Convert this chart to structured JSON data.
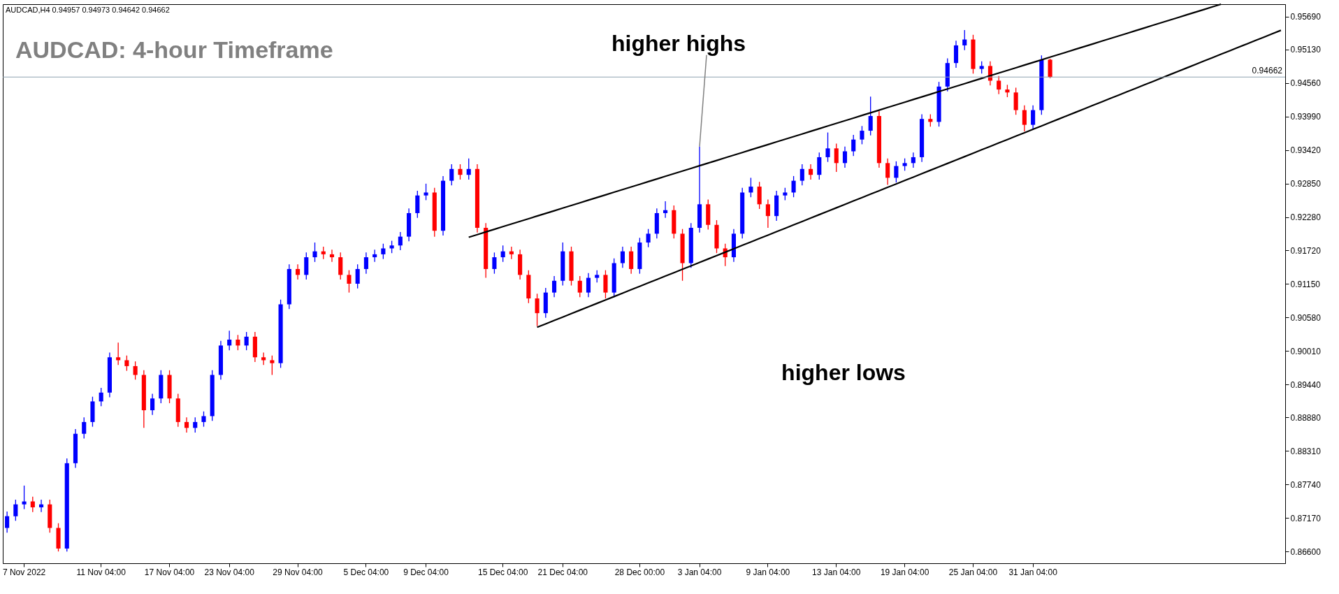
{
  "chart_data": {
    "type": "candlestick",
    "title": "AUDCAD: 4-hour Timeframe",
    "annotations": [
      "AUDCAD,H4 0.94957 0.94973 0.94642 0.94662",
      {
        "text": "higher highs",
        "x": "3 Jan 04:00",
        "y": 0.9348
      },
      "higher lows"
    ],
    "categories": [
      null,
      null,
      "7 Nov 2022",
      null,
      null,
      null,
      null,
      null,
      null,
      null,
      null,
      "11 Nov 04:00",
      null,
      null,
      null,
      null,
      null,
      null,
      null,
      "17 Nov 04:00",
      null,
      null,
      null,
      null,
      null,
      null,
      "23 Nov 04:00",
      null,
      null,
      null,
      null,
      null,
      null,
      null,
      "29 Nov 04:00",
      null,
      null,
      null,
      null,
      null,
      null,
      null,
      "5 Dec 04:00",
      null,
      null,
      null,
      null,
      null,
      null,
      "9 Dec 04:00",
      null,
      null,
      null,
      null,
      null,
      null,
      null,
      null,
      "15 Dec 04:00",
      null,
      null,
      null,
      null,
      null,
      null,
      "21 Dec 04:00",
      null,
      null,
      null,
      null,
      null,
      null,
      null,
      null,
      "28 Dec 00:00",
      null,
      null,
      null,
      null,
      null,
      null,
      "3 Jan 04:00",
      null,
      null,
      null,
      null,
      null,
      null,
      null,
      "9 Jan 04:00",
      null,
      null,
      null,
      null,
      null,
      null,
      null,
      "13 Jan 04:00",
      null,
      null,
      null,
      null,
      null,
      null,
      null,
      "19 Jan 04:00",
      null,
      null,
      null,
      null,
      null,
      null,
      null,
      "25 Jan 04:00",
      null,
      null,
      null,
      null,
      null,
      null,
      "31 Jan 04:00",
      null,
      null,
      null,
      null,
      null,
      null,
      null,
      null,
      null,
      null,
      null,
      null,
      null,
      null,
      null,
      null,
      null,
      null,
      null,
      null,
      null,
      null,
      null,
      null,
      null,
      null,
      null,
      null,
      null
    ],
    "ohlc": [
      [
        0.87,
        0.8728,
        0.8692,
        0.872
      ],
      [
        0.872,
        0.8748,
        0.8712,
        0.874
      ],
      [
        0.874,
        0.8772,
        0.8732,
        0.8745
      ],
      [
        0.8745,
        0.8753,
        0.8727,
        0.8735
      ],
      [
        0.8735,
        0.8748,
        0.8727,
        0.874
      ],
      [
        0.874,
        0.8748,
        0.8692,
        0.87
      ],
      [
        0.87,
        0.8708,
        0.866,
        0.8665
      ],
      [
        0.8665,
        0.8818,
        0.866,
        0.881
      ],
      [
        0.881,
        0.8868,
        0.8802,
        0.886
      ],
      [
        0.886,
        0.8888,
        0.8852,
        0.888
      ],
      [
        0.888,
        0.8923,
        0.8872,
        0.8915
      ],
      [
        0.8915,
        0.8938,
        0.8907,
        0.893
      ],
      [
        0.893,
        0.8998,
        0.8922,
        0.899
      ],
      [
        0.899,
        0.9015,
        0.8977,
        0.8985
      ],
      [
        0.8985,
        0.8993,
        0.8967,
        0.8975
      ],
      [
        0.8975,
        0.8983,
        0.8952,
        0.896
      ],
      [
        0.896,
        0.8968,
        0.887,
        0.89
      ],
      [
        0.89,
        0.8928,
        0.8892,
        0.892
      ],
      [
        0.892,
        0.8968,
        0.8912,
        0.896
      ],
      [
        0.896,
        0.8968,
        0.8912,
        0.892
      ],
      [
        0.892,
        0.8928,
        0.8872,
        0.888
      ],
      [
        0.888,
        0.8888,
        0.8862,
        0.887
      ],
      [
        0.887,
        0.8888,
        0.8862,
        0.888
      ],
      [
        0.888,
        0.8898,
        0.8872,
        0.889
      ],
      [
        0.889,
        0.8968,
        0.8882,
        0.896
      ],
      [
        0.896,
        0.9018,
        0.8952,
        0.901
      ],
      [
        0.901,
        0.9035,
        0.9002,
        0.902
      ],
      [
        0.902,
        0.9028,
        0.9002,
        0.901
      ],
      [
        0.901,
        0.9033,
        0.9002,
        0.9025
      ],
      [
        0.9025,
        0.9033,
        0.8982,
        0.899
      ],
      [
        0.899,
        0.8998,
        0.8977,
        0.8985
      ],
      [
        0.8985,
        0.8993,
        0.896,
        0.898
      ],
      [
        0.898,
        0.9088,
        0.8972,
        0.908
      ],
      [
        0.908,
        0.9148,
        0.9072,
        0.914
      ],
      [
        0.914,
        0.9148,
        0.9122,
        0.913
      ],
      [
        0.913,
        0.9168,
        0.9122,
        0.916
      ],
      [
        0.916,
        0.9185,
        0.9152,
        0.917
      ],
      [
        0.917,
        0.9178,
        0.9157,
        0.9165
      ],
      [
        0.9165,
        0.9173,
        0.9152,
        0.916
      ],
      [
        0.916,
        0.9168,
        0.9122,
        0.913
      ],
      [
        0.913,
        0.9138,
        0.91,
        0.9115
      ],
      [
        0.9115,
        0.9148,
        0.9107,
        0.914
      ],
      [
        0.914,
        0.9168,
        0.9132,
        0.916
      ],
      [
        0.916,
        0.9173,
        0.9152,
        0.9165
      ],
      [
        0.9165,
        0.9183,
        0.9157,
        0.9175
      ],
      [
        0.9175,
        0.9188,
        0.9167,
        0.918
      ],
      [
        0.918,
        0.9203,
        0.9172,
        0.9195
      ],
      [
        0.9195,
        0.9243,
        0.9187,
        0.9235
      ],
      [
        0.9235,
        0.9273,
        0.9227,
        0.9265
      ],
      [
        0.9265,
        0.9285,
        0.9257,
        0.927
      ],
      [
        0.927,
        0.9278,
        0.9195,
        0.9205
      ],
      [
        0.9205,
        0.9298,
        0.9197,
        0.929
      ],
      [
        0.929,
        0.9318,
        0.9282,
        0.931
      ],
      [
        0.931,
        0.9318,
        0.9292,
        0.93
      ],
      [
        0.93,
        0.9328,
        0.9292,
        0.931
      ],
      [
        0.931,
        0.9318,
        0.9202,
        0.921
      ],
      [
        0.921,
        0.9218,
        0.9125,
        0.914
      ],
      [
        0.914,
        0.9168,
        0.9132,
        0.916
      ],
      [
        0.916,
        0.918,
        0.9152,
        0.917
      ],
      [
        0.917,
        0.9178,
        0.9157,
        0.9165
      ],
      [
        0.9165,
        0.9173,
        0.9122,
        0.913
      ],
      [
        0.913,
        0.9138,
        0.9082,
        0.909
      ],
      [
        0.909,
        0.9098,
        0.9043,
        0.9065
      ],
      [
        0.9065,
        0.9108,
        0.9057,
        0.91
      ],
      [
        0.91,
        0.9128,
        0.9092,
        0.912
      ],
      [
        0.912,
        0.9185,
        0.9112,
        0.917
      ],
      [
        0.917,
        0.9178,
        0.9112,
        0.912
      ],
      [
        0.912,
        0.9128,
        0.9092,
        0.91
      ],
      [
        0.91,
        0.9133,
        0.9092,
        0.9125
      ],
      [
        0.9125,
        0.9138,
        0.9117,
        0.913
      ],
      [
        0.913,
        0.9138,
        0.909,
        0.91
      ],
      [
        0.91,
        0.9158,
        0.9092,
        0.915
      ],
      [
        0.915,
        0.9178,
        0.9142,
        0.917
      ],
      [
        0.917,
        0.9178,
        0.9132,
        0.914
      ],
      [
        0.914,
        0.9193,
        0.9132,
        0.9185
      ],
      [
        0.9185,
        0.9208,
        0.9177,
        0.92
      ],
      [
        0.92,
        0.9243,
        0.9192,
        0.9235
      ],
      [
        0.9235,
        0.9255,
        0.9227,
        0.924
      ],
      [
        0.924,
        0.9248,
        0.9192,
        0.92
      ],
      [
        0.92,
        0.9208,
        0.912,
        0.915
      ],
      [
        0.915,
        0.9218,
        0.9142,
        0.921
      ],
      [
        0.921,
        0.9348,
        0.9202,
        0.925
      ],
      [
        0.925,
        0.9258,
        0.9207,
        0.9215
      ],
      [
        0.9215,
        0.9223,
        0.9167,
        0.9175
      ],
      [
        0.9175,
        0.9183,
        0.9145,
        0.916
      ],
      [
        0.916,
        0.9208,
        0.9152,
        0.92
      ],
      [
        0.92,
        0.9278,
        0.9192,
        0.927
      ],
      [
        0.927,
        0.9295,
        0.9262,
        0.928
      ],
      [
        0.928,
        0.9288,
        0.9242,
        0.925
      ],
      [
        0.925,
        0.9258,
        0.921,
        0.923
      ],
      [
        0.923,
        0.9273,
        0.9222,
        0.9265
      ],
      [
        0.9265,
        0.9278,
        0.9257,
        0.927
      ],
      [
        0.927,
        0.9298,
        0.9262,
        0.929
      ],
      [
        0.929,
        0.9318,
        0.9282,
        0.931
      ],
      [
        0.931,
        0.9318,
        0.9292,
        0.93
      ],
      [
        0.93,
        0.9338,
        0.9292,
        0.933
      ],
      [
        0.933,
        0.9372,
        0.9322,
        0.9345
      ],
      [
        0.9345,
        0.9353,
        0.9305,
        0.932
      ],
      [
        0.932,
        0.9348,
        0.9312,
        0.934
      ],
      [
        0.934,
        0.9368,
        0.9332,
        0.936
      ],
      [
        0.936,
        0.9383,
        0.9352,
        0.9375
      ],
      [
        0.9375,
        0.9433,
        0.9367,
        0.94
      ],
      [
        0.94,
        0.9408,
        0.9312,
        0.932
      ],
      [
        0.932,
        0.9328,
        0.9283,
        0.9295
      ],
      [
        0.9295,
        0.9323,
        0.9287,
        0.9315
      ],
      [
        0.9315,
        0.9328,
        0.9307,
        0.932
      ],
      [
        0.932,
        0.9338,
        0.9312,
        0.933
      ],
      [
        0.933,
        0.9403,
        0.9322,
        0.9395
      ],
      [
        0.9395,
        0.9403,
        0.9382,
        0.939
      ],
      [
        0.939,
        0.9458,
        0.9382,
        0.945
      ],
      [
        0.945,
        0.9498,
        0.9442,
        0.949
      ],
      [
        0.949,
        0.9528,
        0.9482,
        0.952
      ],
      [
        0.952,
        0.9546,
        0.9512,
        0.953
      ],
      [
        0.953,
        0.9538,
        0.9472,
        0.948
      ],
      [
        0.948,
        0.9493,
        0.9472,
        0.9485
      ],
      [
        0.9485,
        0.9493,
        0.9452,
        0.946
      ],
      [
        0.946,
        0.9468,
        0.9437,
        0.9445
      ],
      [
        0.9445,
        0.9453,
        0.9432,
        0.944
      ],
      [
        0.944,
        0.9448,
        0.9402,
        0.941
      ],
      [
        0.941,
        0.9418,
        0.9374,
        0.9385
      ],
      [
        0.9385,
        0.9418,
        0.9377,
        0.941
      ],
      [
        0.941,
        0.9503,
        0.9402,
        0.9495
      ],
      [
        0.94957,
        0.94973,
        0.94642,
        0.94662
      ],
      null,
      null,
      null,
      null,
      null,
      null,
      null,
      null,
      null,
      null,
      null,
      null,
      null,
      null,
      null,
      null,
      null,
      null,
      null,
      null,
      null,
      null,
      null,
      null,
      null,
      null,
      null
    ],
    "colors": [
      "#0000ff",
      "#0000ff",
      "#0000ff",
      "#ff0000",
      "#0000ff",
      "#ff0000",
      "#ff0000",
      "#0000ff",
      "#0000ff",
      "#0000ff",
      "#0000ff",
      "#0000ff",
      "#0000ff",
      "#ff0000",
      "#ff0000",
      "#ff0000",
      "#ff0000",
      "#0000ff",
      "#0000ff",
      "#ff0000",
      "#ff0000",
      "#ff0000",
      "#0000ff",
      "#0000ff",
      "#0000ff",
      "#0000ff",
      "#0000ff",
      "#ff0000",
      "#0000ff",
      "#ff0000",
      "#ff0000",
      "#ff0000",
      "#0000ff",
      "#0000ff",
      "#ff0000",
      "#0000ff",
      "#0000ff",
      "#ff0000",
      "#ff0000",
      "#ff0000",
      "#ff0000",
      "#0000ff",
      "#0000ff",
      "#0000ff",
      "#0000ff",
      "#0000ff",
      "#0000ff",
      "#0000ff",
      "#0000ff",
      "#0000ff",
      "#ff0000",
      "#0000ff",
      "#0000ff",
      "#ff0000",
      "#0000ff",
      "#ff0000",
      "#ff0000",
      "#0000ff",
      "#0000ff",
      "#ff0000",
      "#ff0000",
      "#ff0000",
      "#ff0000",
      "#0000ff",
      "#0000ff",
      "#0000ff",
      "#ff0000",
      "#ff0000",
      "#0000ff",
      "#0000ff",
      "#ff0000",
      "#0000ff",
      "#0000ff",
      "#ff0000",
      "#0000ff",
      "#0000ff",
      "#0000ff",
      "#0000ff",
      "#ff0000",
      "#ff0000",
      "#0000ff",
      "#0000ff",
      "#ff0000",
      "#ff0000",
      "#ff0000",
      "#0000ff",
      "#0000ff",
      "#0000ff",
      "#ff0000",
      "#ff0000",
      "#0000ff",
      "#0000ff",
      "#0000ff",
      "#0000ff",
      "#ff0000",
      "#0000ff",
      "#0000ff",
      "#ff0000",
      "#0000ff",
      "#0000ff",
      "#0000ff",
      "#0000ff",
      "#ff0000",
      "#ff0000",
      "#0000ff",
      "#0000ff",
      "#0000ff",
      "#0000ff",
      "#ff0000",
      "#0000ff",
      "#0000ff",
      "#0000ff",
      "#0000ff",
      "#ff0000",
      "#0000ff",
      "#ff0000",
      "#ff0000",
      "#ff0000",
      "#ff0000",
      "#ff0000",
      "#0000ff",
      "#0000ff",
      "#ff0000",
      null,
      null,
      null,
      null,
      null,
      null,
      null,
      null,
      null,
      null,
      null,
      null,
      null,
      null,
      null,
      null,
      null,
      null,
      null,
      null,
      null,
      null,
      null,
      null,
      null,
      null,
      null
    ],
    "series": [
      {
        "type": "line",
        "color": "#000000",
        "values": [
          null,
          null,
          null,
          null,
          null,
          null,
          null,
          null,
          null,
          null,
          null,
          null,
          null,
          null,
          null,
          null,
          null,
          null,
          null,
          null,
          null,
          null,
          null,
          null,
          null,
          null,
          null,
          null,
          null,
          null,
          null,
          null,
          null,
          null,
          null,
          null,
          null,
          null,
          null,
          null,
          null,
          null,
          null,
          null,
          null,
          null,
          null,
          null,
          null,
          null,
          null,
          null,
          null,
          null,
          0.9194,
          0.91985,
          0.9203,
          0.92075,
          0.9212,
          0.92165,
          0.9221,
          0.92255,
          0.923,
          0.92345,
          0.9239,
          0.92435,
          0.9248,
          0.92525,
          0.9257,
          0.92615,
          0.9266,
          0.92705,
          0.9275,
          0.92795,
          0.9284,
          0.92885,
          0.9293,
          0.92975,
          0.9302,
          0.93065,
          0.9311,
          0.93155,
          0.932,
          0.93245,
          0.9329,
          0.93335,
          0.9338,
          0.93425,
          0.9347,
          0.93515,
          0.9356,
          0.93605,
          0.9365,
          0.93695,
          0.9374,
          0.93785,
          0.9383,
          0.93875,
          0.9392,
          0.93965,
          0.9401,
          0.94055,
          0.941,
          0.94145,
          0.9419,
          0.94235,
          0.9428,
          0.94325,
          0.9437,
          0.94415,
          0.9446,
          0.94505,
          0.9455,
          0.94595,
          0.9464,
          0.94685,
          0.9473,
          0.94775,
          0.9482,
          0.94865,
          0.9491,
          0.94955,
          0.95,
          0.95045,
          0.9509,
          0.95135,
          0.9518,
          0.95225,
          0.9527,
          0.95315,
          0.9536,
          0.95405,
          0.9545,
          0.95495,
          0.9554,
          0.95585,
          0.9563,
          0.95675,
          0.9572,
          0.95765,
          0.9581,
          0.95855,
          0.959,
          null,
          null,
          null,
          null,
          null,
          null,
          null
        ]
      },
      {
        "type": "line",
        "color": "#000000",
        "values": [
          null,
          null,
          null,
          null,
          null,
          null,
          null,
          null,
          null,
          null,
          null,
          null,
          null,
          null,
          null,
          null,
          null,
          null,
          null,
          null,
          null,
          null,
          null,
          null,
          null,
          null,
          null,
          null,
          null,
          null,
          null,
          null,
          null,
          null,
          null,
          null,
          null,
          null,
          null,
          null,
          null,
          null,
          null,
          null,
          null,
          null,
          null,
          null,
          null,
          null,
          null,
          null,
          null,
          null,
          null,
          null,
          null,
          null,
          null,
          null,
          null,
          null,
          0.9041,
          0.90468,
          0.90526,
          0.90584,
          0.90642,
          0.907,
          0.90758,
          0.90816,
          0.90874,
          0.90932,
          0.9099,
          0.91048,
          0.91106,
          0.91164,
          0.91222,
          0.9128,
          0.91338,
          0.91396,
          0.91454,
          0.91512,
          0.9157,
          0.91628,
          0.91686,
          0.91744,
          0.91802,
          0.9186,
          0.91918,
          0.91976,
          0.92034,
          0.92092,
          0.9215,
          0.92208,
          0.92266,
          0.92324,
          0.92382,
          0.9244,
          0.92498,
          0.92556,
          0.92614,
          0.92672,
          0.9273,
          0.92788,
          0.92846,
          0.92904,
          0.92962,
          0.9302,
          0.93078,
          0.93136,
          0.93194,
          0.93252,
          0.9331,
          0.93368,
          0.93426,
          0.93484,
          0.93542,
          0.936,
          0.93658,
          0.93716,
          0.93774,
          0.93832,
          0.9389,
          0.93948,
          0.94006,
          0.94064,
          0.94122,
          0.9418,
          0.94238,
          0.94296,
          0.94354,
          0.94412,
          0.9447,
          0.94528,
          0.94586,
          0.94644,
          0.94702,
          0.9476,
          0.94818,
          0.94876,
          0.94934,
          0.94992,
          0.9505,
          0.95108,
          0.95166,
          0.95224,
          0.95282,
          0.9534,
          0.95398,
          0.95456
        ]
      }
    ],
    "ref_lines": [
      {
        "axis": "y",
        "value": 0.94662,
        "label": "0.94662",
        "color": "#8fa3b0"
      }
    ],
    "ylim": [
      0.864,
      0.959
    ],
    "yticks": [
      {
        "value": 0.866,
        "label": "0.86600"
      },
      {
        "value": 0.8717,
        "label": "0.87170"
      },
      {
        "value": 0.8774,
        "label": "0.87740"
      },
      {
        "value": 0.8831,
        "label": "0.88310"
      },
      {
        "value": 0.8888,
        "label": "0.88880"
      },
      {
        "value": 0.8944,
        "label": "0.89440"
      },
      {
        "value": 0.9001,
        "label": "0.90010"
      },
      {
        "value": 0.9058,
        "label": "0.90580"
      },
      {
        "value": 0.9115,
        "label": "0.91150"
      },
      {
        "value": 0.9172,
        "label": "0.91720"
      },
      {
        "value": 0.9228,
        "label": "0.92280"
      },
      {
        "value": 0.9285,
        "label": "0.92850"
      },
      {
        "value": 0.9342,
        "label": "0.93420"
      },
      {
        "value": 0.9399,
        "label": "0.93990"
      },
      {
        "value": 0.9456,
        "label": "0.94560"
      },
      {
        "value": 0.9513,
        "label": "0.95130"
      },
      {
        "value": 0.9569,
        "label": "0.95690"
      }
    ],
    "grid": false
  }
}
